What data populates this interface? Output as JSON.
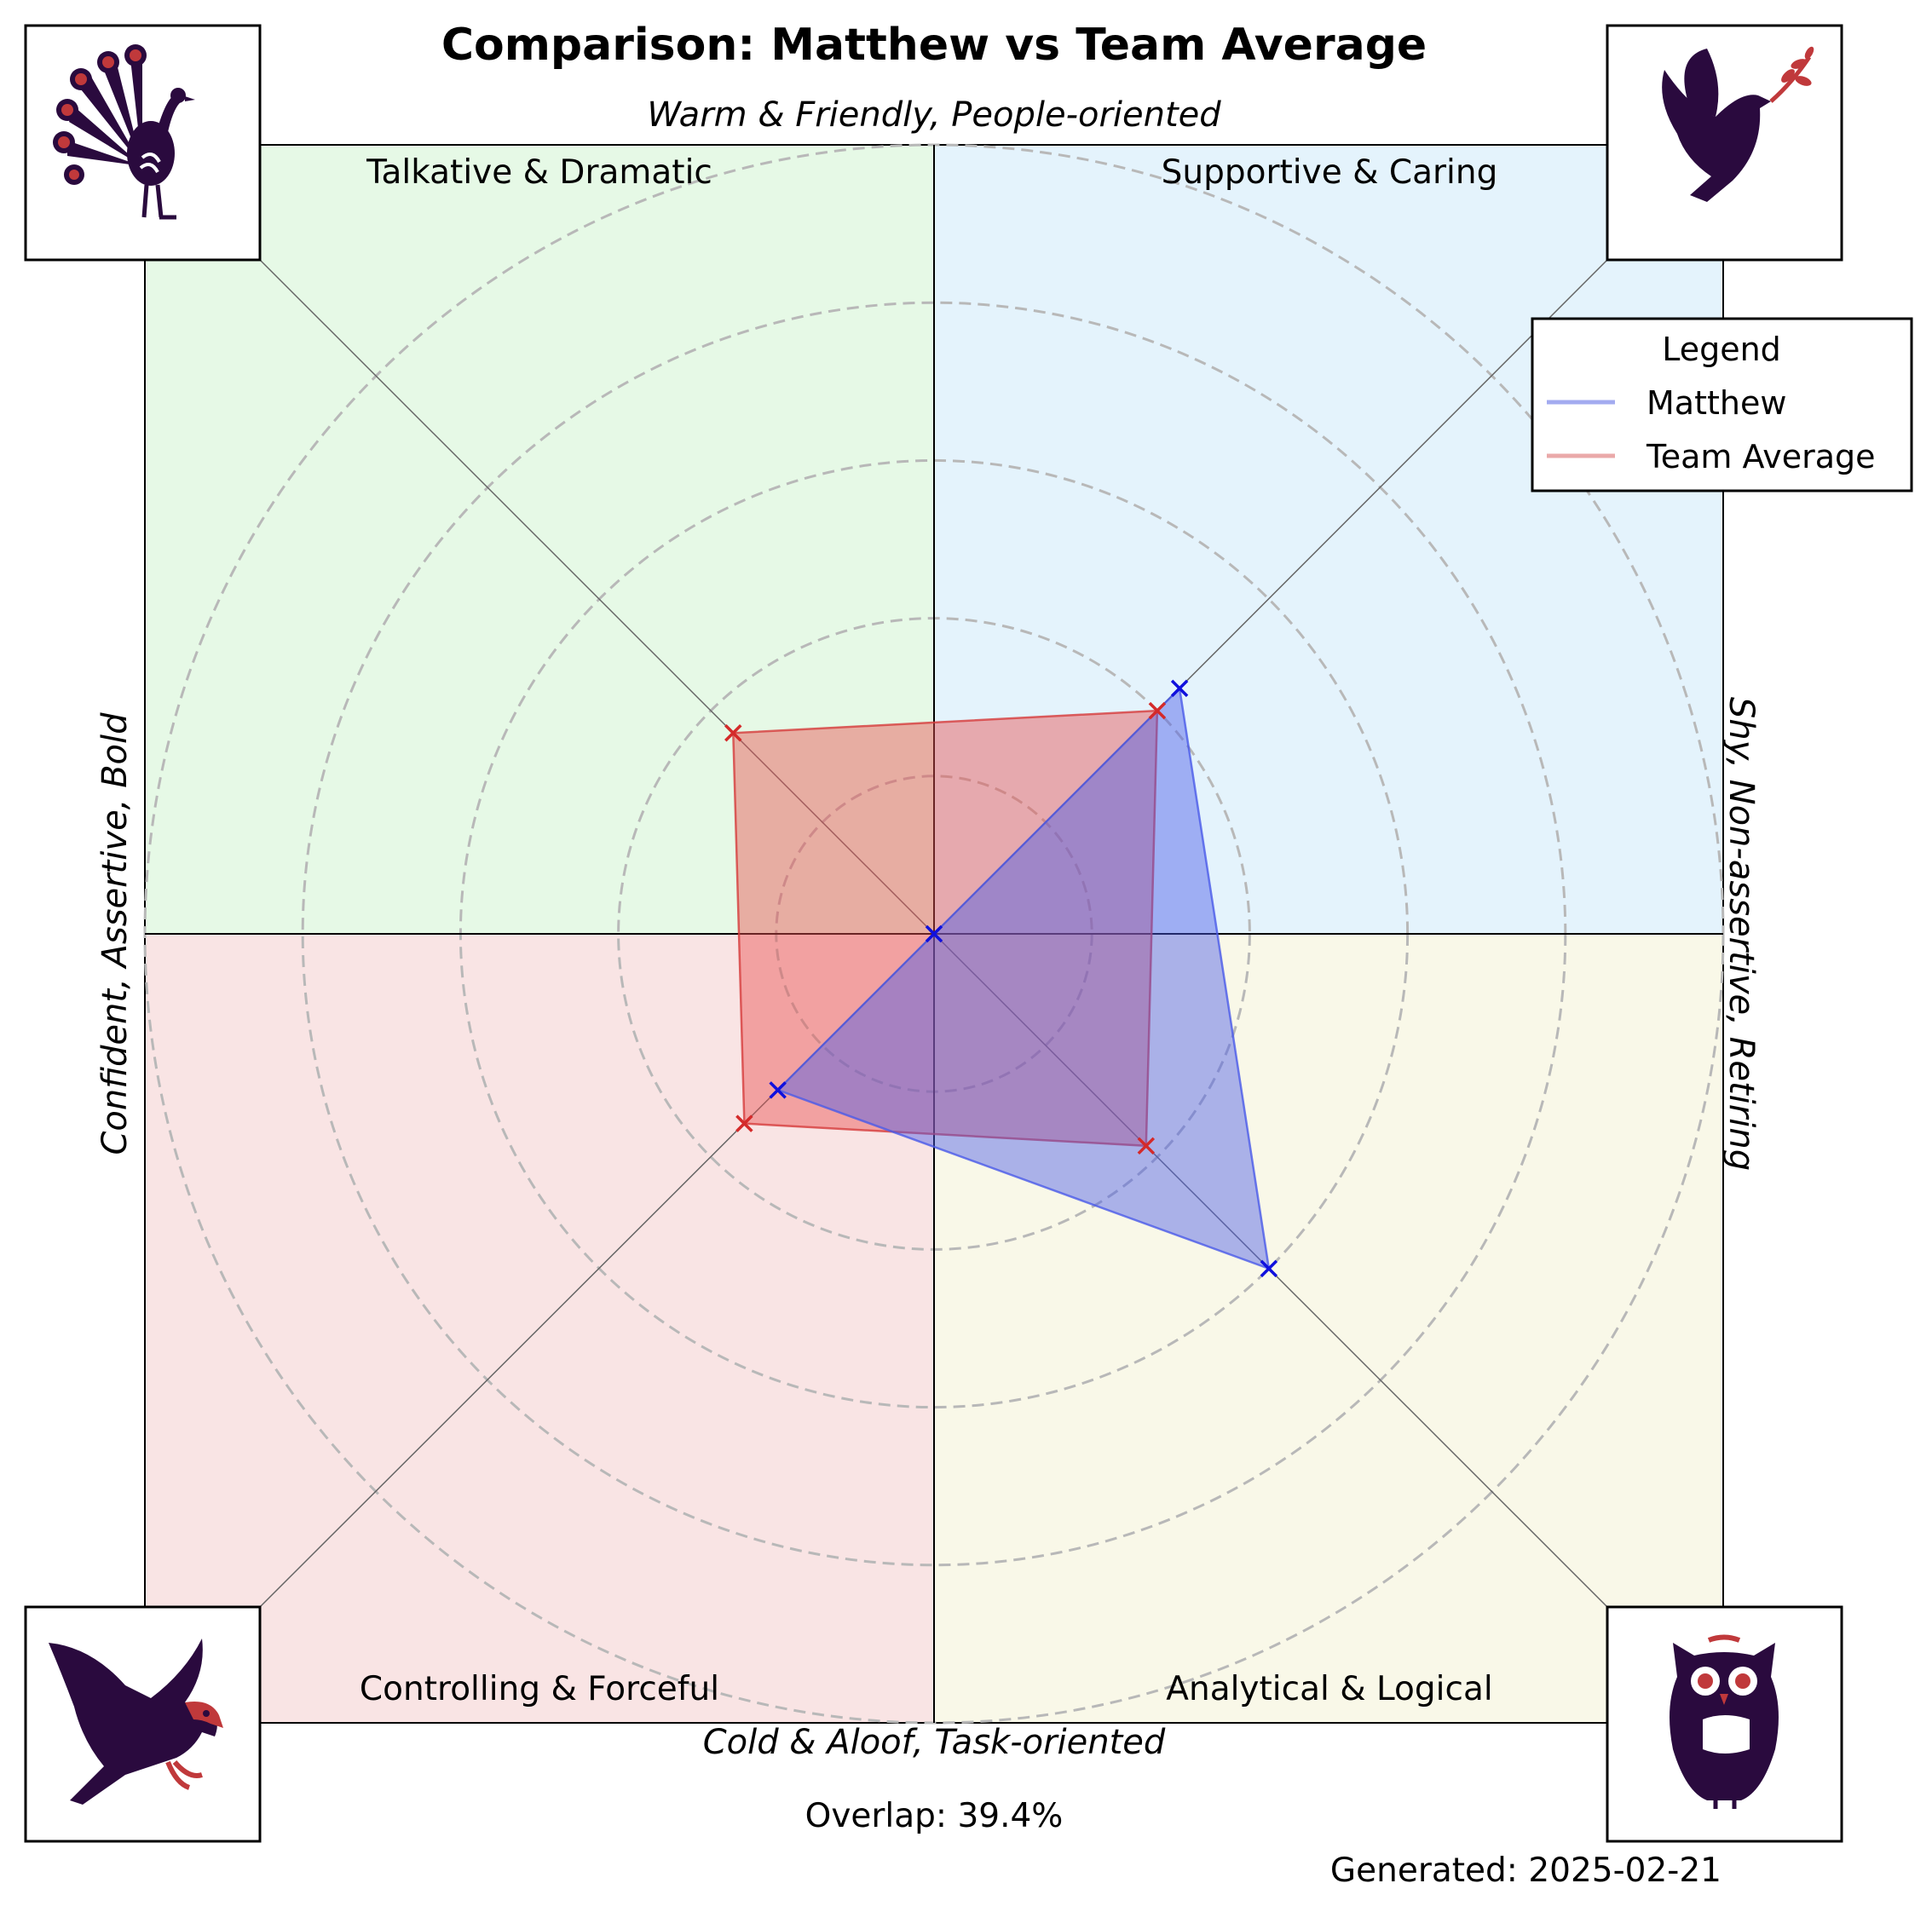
{
  "chart_data": {
    "type": "radar",
    "title": "Comparison: Matthew vs Team Average",
    "axis_labels": {
      "top": "Warm & Friendly, People-oriented",
      "bottom": "Cold & Aloof, Task-oriented",
      "left": "Confident, Assertive, Bold",
      "right": "Shy, Non-assertive, Retiring"
    },
    "quadrants": [
      {
        "label": "Talkative & Dramatic",
        "position": "top-left",
        "color": "#e6f9e6",
        "icon": "peacock-icon"
      },
      {
        "label": "Supportive & Caring",
        "position": "top-right",
        "color": "#e4f3fc",
        "icon": "dove-icon"
      },
      {
        "label": "Controlling & Forceful",
        "position": "bottom-left",
        "color": "#f9e4e4",
        "icon": "eagle-icon"
      },
      {
        "label": "Analytical & Logical",
        "position": "bottom-right",
        "color": "#f9f8e8",
        "icon": "owl-icon"
      }
    ],
    "axes": [
      "Supportive & Caring",
      "Talkative & Dramatic",
      "Controlling & Forceful",
      "Analytical & Logical"
    ],
    "range": [
      0,
      5
    ],
    "rings": [
      1,
      2,
      3,
      4,
      5
    ],
    "grid": true,
    "series": [
      {
        "name": "Matthew",
        "color": "#4a5ae8",
        "marker_color": "#1010dd",
        "values": [
          2.2,
          0.0,
          1.4,
          3.0
        ]
      },
      {
        "name": "Team Average",
        "color": "#e87a7a",
        "marker_color": "#d42a2a",
        "values": [
          2.0,
          1.8,
          1.7,
          1.9
        ]
      }
    ],
    "legend": {
      "title": "Legend",
      "position": "top-right"
    },
    "annotations": {
      "overlap": "Overlap: 39.4%",
      "generated": "Generated: 2025-02-21"
    }
  }
}
